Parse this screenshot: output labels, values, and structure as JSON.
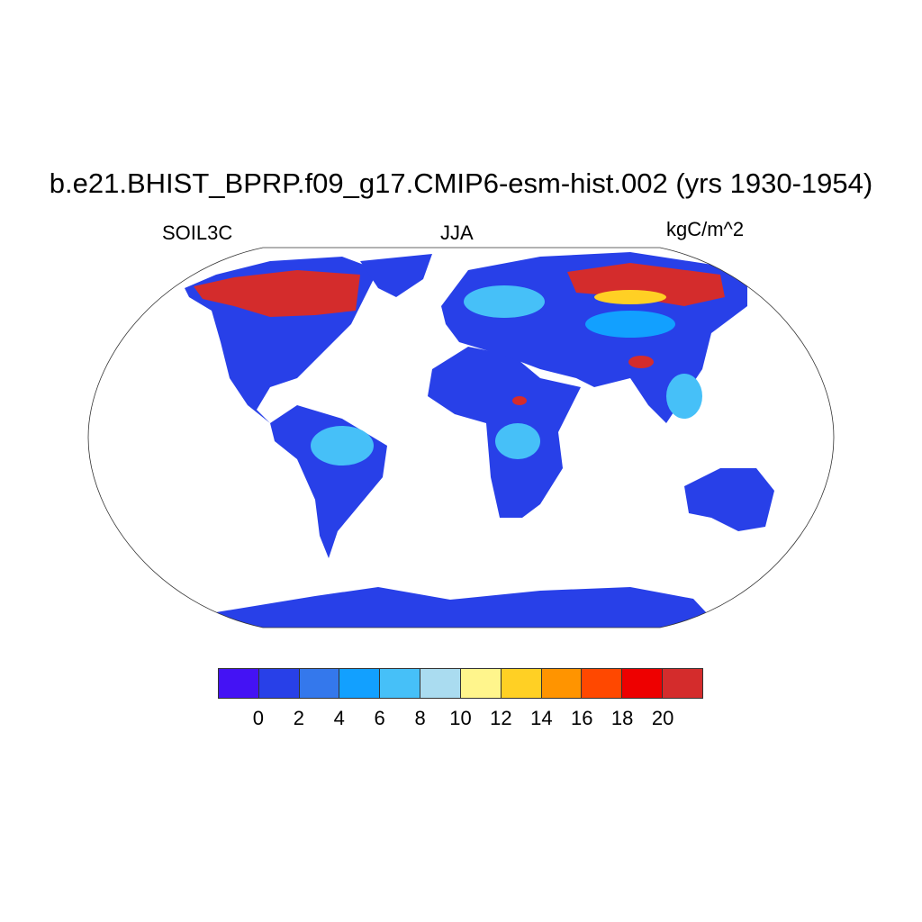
{
  "title": "b.e21.BHIST_BPRP.f09_g17.CMIP6-esm-hist.002 (yrs 1930-1954)",
  "left_label": "SOIL3C",
  "center_label": "JJA",
  "right_label": "kgC/m^2",
  "projection": "Robinson",
  "colorbar": {
    "colors": [
      "#4412F4",
      "#2840E8",
      "#3478EC",
      "#12A0FF",
      "#46C0F8",
      "#AADCF0",
      "#FFF58C",
      "#FFD024",
      "#FF9400",
      "#FF4800",
      "#EE0000",
      "#D42C2C"
    ],
    "labels": [
      "0",
      "2",
      "4",
      "6",
      "8",
      "10",
      "12",
      "14",
      "16",
      "18",
      "20"
    ]
  }
}
